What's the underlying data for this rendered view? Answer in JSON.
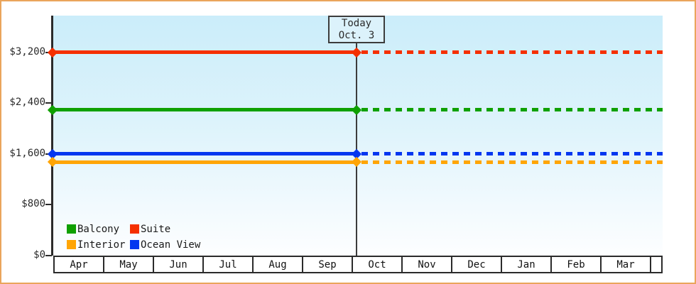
{
  "page": {
    "border_color": "#EAA55C",
    "background": "#FFFFFF"
  },
  "chart_data": {
    "type": "line",
    "title": "",
    "xlabel": "",
    "ylabel": "",
    "categories": [
      "Apr",
      "May",
      "Jun",
      "Jul",
      "Aug",
      "Sep",
      "Oct",
      "Nov",
      "Dec",
      "Jan",
      "Feb",
      "Mar"
    ],
    "series": [
      {
        "name": "Suite",
        "color": "#F53000",
        "value": 3200
      },
      {
        "name": "Balcony",
        "color": "#0FA000",
        "value": 2290
      },
      {
        "name": "Ocean View",
        "color": "#0437F0",
        "value": 1600
      },
      {
        "name": "Interior",
        "color": "#FFA505",
        "value": 1470
      }
    ],
    "legend_order": [
      "Balcony",
      "Suite",
      "Interior",
      "Ocean View"
    ],
    "legend_position": "bottom-left",
    "yticks": [
      {
        "value": 0,
        "label": "$0"
      },
      {
        "value": 800,
        "label": "$800"
      },
      {
        "value": 1600,
        "label": "$1,600"
      },
      {
        "value": 2400,
        "label": "$2,400"
      },
      {
        "value": 3200,
        "label": "$3,200"
      }
    ],
    "ylim": [
      0,
      3600
    ],
    "grid": false,
    "today": {
      "label": "Today",
      "date": "Oct. 3",
      "month_index": 6,
      "day_fraction": 0.1,
      "line_style_before": "solid",
      "line_style_after": "dashed"
    }
  }
}
